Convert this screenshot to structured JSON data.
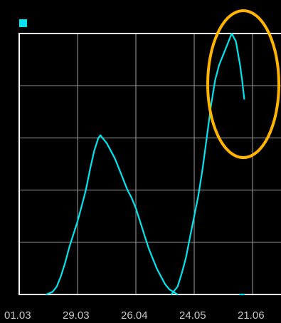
{
  "chart_data": {
    "type": "line",
    "title": "",
    "xlabel": "",
    "ylabel": "",
    "x_ticks": [
      "01.03",
      "29.03",
      "26.04",
      "24.05",
      "21.06"
    ],
    "x_tick_days": [
      0,
      28,
      56,
      84,
      112
    ],
    "xlim": [
      0,
      126
    ],
    "ylim": [
      0,
      100
    ],
    "grid": true,
    "y_gridlines": 5,
    "legend": {
      "position": "top-left",
      "color": "#00e5ee"
    },
    "colors": {
      "background": "#000000",
      "axis": "#ffffff",
      "grid": "#a0a0a0",
      "series": "#00e5ee",
      "highlight": "#ffb400",
      "tick_label": "#c8c8c8"
    },
    "series": [
      {
        "segments": [
          [
            [
              13,
              0
            ],
            [
              16,
              1
            ],
            [
              18,
              3
            ],
            [
              20,
              7
            ],
            [
              22,
              12
            ],
            [
              24,
              18
            ],
            [
              26,
              23
            ],
            [
              28,
              28
            ],
            [
              30,
              34
            ],
            [
              32,
              40
            ],
            [
              34,
              48
            ],
            [
              36,
              55
            ],
            [
              38,
              60
            ],
            [
              39,
              61
            ],
            [
              40,
              60
            ],
            [
              42,
              58
            ],
            [
              44,
              55
            ],
            [
              46,
              52
            ],
            [
              48,
              48
            ],
            [
              50,
              44
            ],
            [
              52,
              40
            ],
            [
              54,
              37
            ],
            [
              56,
              33
            ],
            [
              58,
              28
            ],
            [
              60,
              23
            ],
            [
              62,
              18
            ],
            [
              64,
              14
            ],
            [
              66,
              10
            ],
            [
              68,
              7
            ],
            [
              70,
              4
            ],
            [
              72,
              2
            ],
            [
              74,
              1
            ],
            [
              76,
              0
            ]
          ],
          [
            [
              73,
              0
            ],
            [
              76,
              3
            ],
            [
              78,
              8
            ],
            [
              80,
              14
            ],
            [
              82,
              22
            ],
            [
              84,
              30
            ],
            [
              86,
              38
            ],
            [
              88,
              48
            ],
            [
              90,
              60
            ],
            [
              92,
              72
            ],
            [
              94,
              82
            ],
            [
              96,
              88
            ],
            [
              98,
              92
            ],
            [
              100,
              96
            ],
            [
              102,
              100
            ],
            [
              104,
              97
            ],
            [
              106,
              88
            ],
            [
              107,
              82
            ],
            [
              108,
              75
            ]
          ],
          [
            [
              106,
              0
            ],
            [
              108,
              0
            ]
          ]
        ]
      }
    ]
  }
}
